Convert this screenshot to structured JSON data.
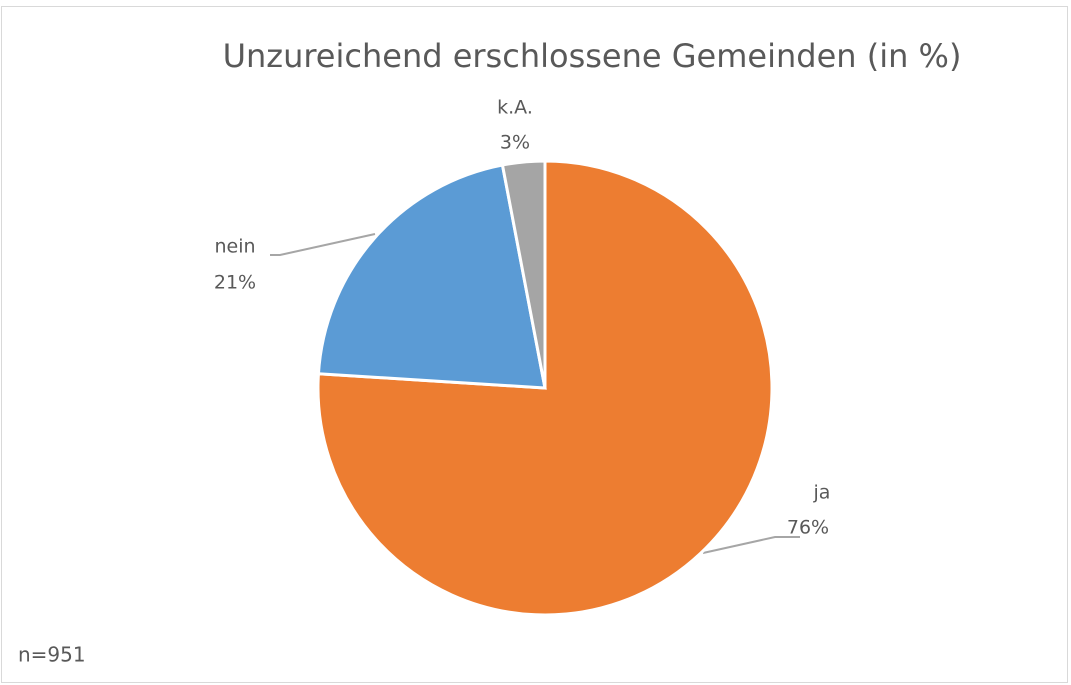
{
  "chart_data": {
    "type": "pie",
    "title": "Unzureichend erschlossene Gemeinden (in %)",
    "categories": [
      "ja",
      "nein",
      "k.A."
    ],
    "values": [
      76,
      21,
      3
    ],
    "value_labels": [
      "76%",
      "21%",
      "3%"
    ],
    "colors": [
      "#ed7d31",
      "#5b9bd5",
      "#a5a5a5"
    ],
    "annotation": "n=951"
  }
}
